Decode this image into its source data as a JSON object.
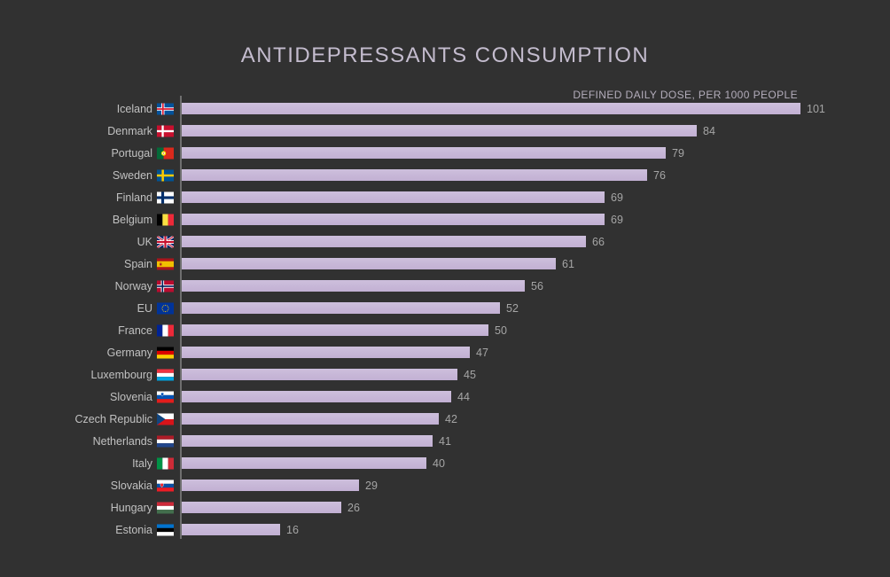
{
  "title": "ANTIDEPRESSANTS CONSUMPTION",
  "subtitle": "DEFINED DAILY DOSE, PER 1000 PEOPLE",
  "colors": {
    "background": "#313131",
    "bar": "#c3b1d4",
    "title_text": "#c4bcce",
    "subtitle_text": "#b3adbb",
    "category_text": "#c1c1c1",
    "value_text": "#a5a5a5",
    "axis_line": "#6f6f6f"
  },
  "chart_data": {
    "type": "bar",
    "orientation": "horizontal",
    "title": "ANTIDEPRESSANTS CONSUMPTION",
    "value_axis_label": "DEFINED DAILY DOSE, PER 1000 PEOPLE",
    "xlim": [
      0,
      101
    ],
    "grid": false,
    "legend": false,
    "value_labels_shown": true,
    "sort": "descending",
    "categories": [
      "Iceland",
      "Denmark",
      "Portugal",
      "Sweden",
      "Finland",
      "Belgium",
      "UK",
      "Spain",
      "Norway",
      "EU",
      "France",
      "Germany",
      "Luxembourg",
      "Slovenia",
      "Czech Republic",
      "Netherlands",
      "Italy",
      "Slovakia",
      "Hungary",
      "Estonia"
    ],
    "values": [
      101,
      84,
      79,
      76,
      69,
      69,
      66,
      61,
      56,
      52,
      50,
      47,
      45,
      44,
      42,
      41,
      40,
      29,
      26,
      16
    ],
    "flags": [
      "iceland",
      "denmark",
      "portugal",
      "sweden",
      "finland",
      "belgium",
      "uk",
      "spain",
      "norway",
      "eu",
      "france",
      "germany",
      "luxembourg",
      "slovenia",
      "czech-republic",
      "netherlands",
      "italy",
      "slovakia",
      "hungary",
      "estonia"
    ]
  }
}
